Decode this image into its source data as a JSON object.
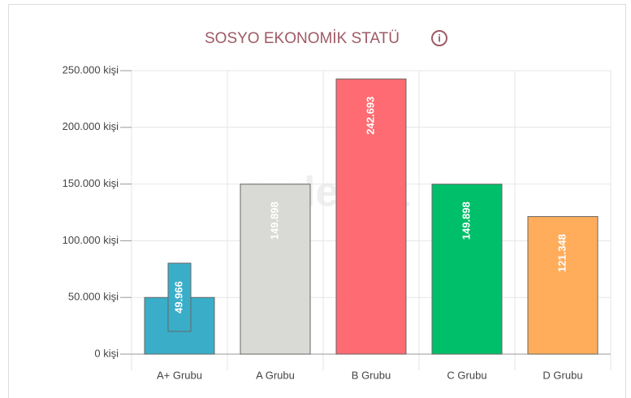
{
  "chart_data": {
    "type": "bar",
    "title": "SOSYO EKONOMİK STATÜ",
    "watermark": "endeksa",
    "categories": [
      "A+ Grubu",
      "A Grubu",
      "B Grubu",
      "C Grubu",
      "D Grubu"
    ],
    "values": [
      49966,
      149898,
      242693,
      149898,
      121348
    ],
    "value_labels": [
      "49.966",
      "149.898",
      "242.693",
      "149.898",
      "121.348"
    ],
    "colors": [
      "#3aaec8",
      "#d9d9d5",
      "#ff6b72",
      "#00bf6a",
      "#ffad5b"
    ],
    "ylim": [
      0,
      250000
    ],
    "yticks": [
      {
        "value": 0,
        "label": "0 kişi"
      },
      {
        "value": 50000,
        "label": "50.000 kişi"
      },
      {
        "value": 100000,
        "label": "100.000 kişi"
      },
      {
        "value": 150000,
        "label": "150.000 kişi"
      },
      {
        "value": 200000,
        "label": "200.000 kişi"
      },
      {
        "value": 250000,
        "label": "250.000 kişi"
      }
    ],
    "grid": true
  }
}
